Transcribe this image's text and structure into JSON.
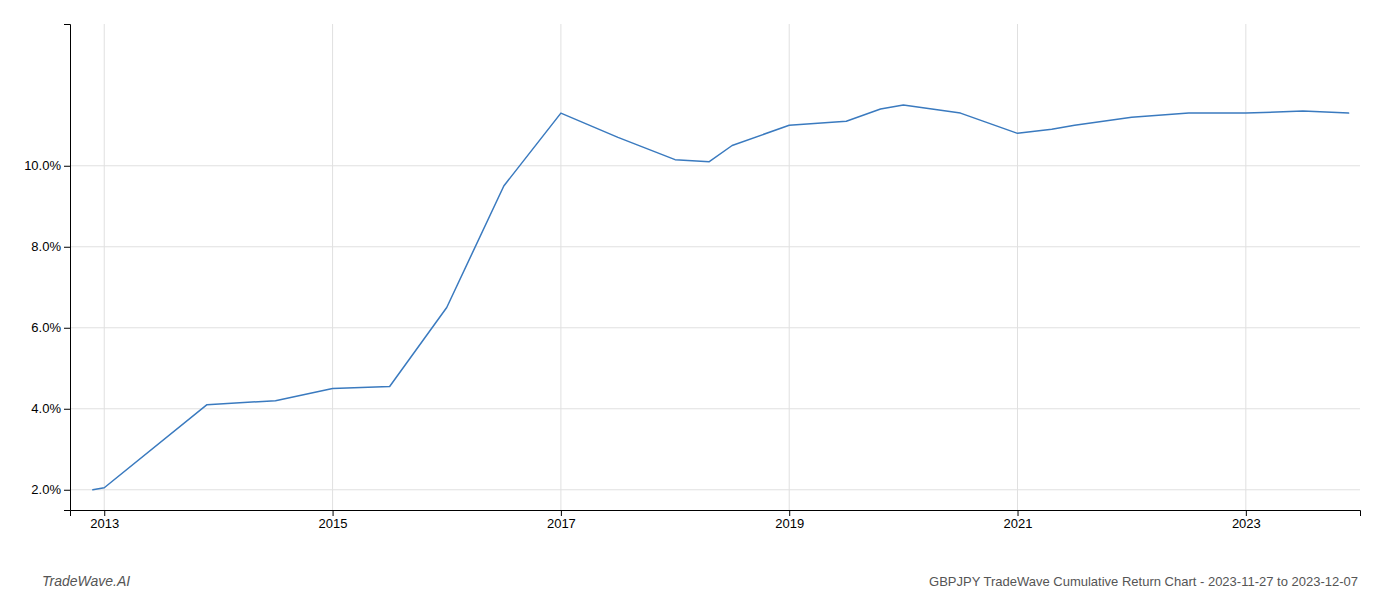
{
  "chart_data": {
    "type": "line",
    "title": "GBPJPY TradeWave Cumulative Return Chart - 2023-11-27 to 2023-12-07",
    "annotations": [
      "TradeWave.AI"
    ],
    "x": [
      2012.9,
      2013.0,
      2013.9,
      2014.5,
      2015.0,
      2015.5,
      2016.0,
      2016.5,
      2017.0,
      2017.5,
      2018.0,
      2018.3,
      2018.5,
      2019.0,
      2019.5,
      2019.8,
      2020.0,
      2020.5,
      2021.0,
      2021.3,
      2021.5,
      2022.0,
      2022.5,
      2023.0,
      2023.5,
      2023.9
    ],
    "values": [
      2.0,
      2.05,
      4.1,
      4.2,
      4.5,
      4.55,
      6.5,
      9.5,
      11.3,
      10.7,
      10.15,
      10.1,
      10.5,
      11.0,
      11.1,
      11.4,
      11.5,
      11.3,
      10.8,
      10.9,
      11.0,
      11.2,
      11.3,
      11.3,
      11.35,
      11.3
    ],
    "color": "#3a7abf",
    "xlim": [
      2012.7,
      2024.0
    ],
    "ylim": [
      1.5,
      13.5
    ],
    "xticks": [
      2013,
      2015,
      2017,
      2019,
      2021,
      2023
    ],
    "yticks": [
      {
        "value": 2.0,
        "label": "2.0%"
      },
      {
        "value": 4.0,
        "label": "4.0%"
      },
      {
        "value": 6.0,
        "label": "6.0%"
      },
      {
        "value": 8.0,
        "label": "8.0%"
      },
      {
        "value": 10.0,
        "label": "10.0%"
      }
    ],
    "grid": true
  }
}
